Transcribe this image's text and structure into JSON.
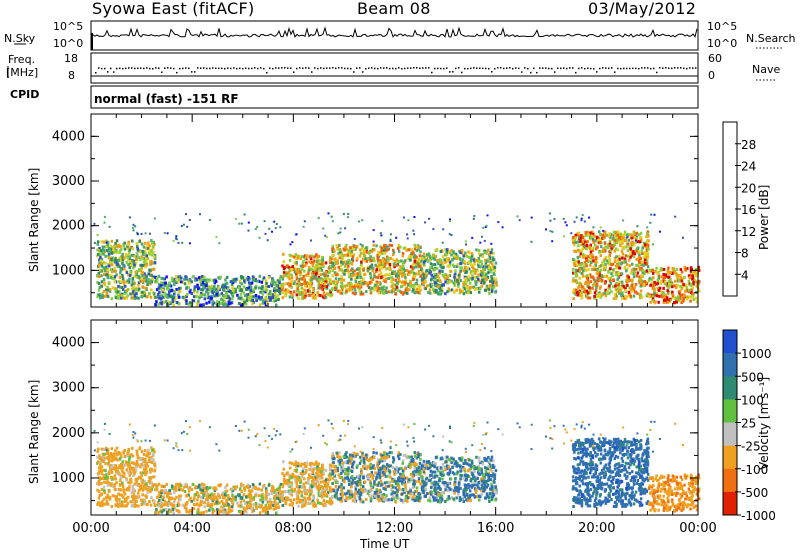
{
  "header": {
    "station": "Syowa East (fitACF)",
    "beam": "Beam 08",
    "date": "03/May/2012"
  },
  "panels": {
    "nsky_label": "N.Sky",
    "nsearch_label": "N.Search",
    "freq_label_1": "Freq.",
    "freq_label_2": "[MHz]",
    "nave_label": "Nave",
    "cpid_label": "CPID",
    "cpid_text": "normal (fast) -151 RF",
    "noise_ticks_left": [
      "10^5",
      "10^0"
    ],
    "noise_ticks_right": [
      "10^5",
      "10^0"
    ],
    "freq_ticks": [
      "18",
      "8"
    ],
    "nave_ticks": [
      "60",
      "0"
    ]
  },
  "axes": {
    "ylabel": "Slant Range [km]",
    "xlabel": "Time UT",
    "yticks": [
      "1000",
      "2000",
      "3000",
      "4000"
    ],
    "xticks": [
      "00:00",
      "04:00",
      "08:00",
      "12:00",
      "16:00",
      "20:00",
      "00:00"
    ]
  },
  "colorbars": {
    "power": {
      "label": "Power [dB]",
      "ticks": [
        "4",
        "8",
        "12",
        "16",
        "20",
        "24",
        "28"
      ],
      "colors": [
        "#1010ff",
        "#3050c0",
        "#2f8a60",
        "#4aa870",
        "#86d040",
        "#e0d020",
        "#f59a10",
        "#f06010",
        "#e00000"
      ]
    },
    "velocity": {
      "label": "Velocity [m s⁻¹]",
      "ticks": [
        "1000",
        "500",
        "100",
        "25",
        "-25",
        "-100",
        "-500",
        "-1000"
      ],
      "colors": [
        "#2050d0",
        "#3070b0",
        "#2e8a70",
        "#60c040",
        "#c0c0c0",
        "#f0a020",
        "#f07010",
        "#e02000"
      ]
    }
  },
  "chart_data": {
    "type": "heatmap",
    "title": "Syowa East (fitACF)  Beam 08  03/May/2012",
    "xlabel": "Time UT",
    "ylabel": "Slant Range [km]",
    "xlim_hours": [
      0,
      24
    ],
    "ylim_km": [
      180,
      4500
    ],
    "power_scale_db": [
      0,
      30
    ],
    "velocity_scale": [
      -1000,
      1000
    ],
    "scatter_regions": [
      {
        "t0": 0.2,
        "t1": 2.5,
        "r0": 400,
        "r1": 1700,
        "power": 14,
        "velocity": -250
      },
      {
        "t0": 2.5,
        "t1": 7.5,
        "r0": 250,
        "r1": 900,
        "power": 10,
        "velocity": -150
      },
      {
        "t0": 7.5,
        "t1": 9.5,
        "r0": 400,
        "r1": 1400,
        "power": 20,
        "velocity": -200
      },
      {
        "t0": 9.5,
        "t1": 13.0,
        "r0": 500,
        "r1": 1600,
        "power": 18,
        "velocity": 10
      },
      {
        "t0": 13.0,
        "t1": 16.0,
        "r0": 500,
        "r1": 1500,
        "power": 14,
        "velocity": 120
      },
      {
        "t0": 19.0,
        "t1": 22.0,
        "r0": 400,
        "r1": 1900,
        "power": 20,
        "velocity": 300
      },
      {
        "t0": 22.0,
        "t1": 24.0,
        "r0": 300,
        "r1": 1100,
        "power": 22,
        "velocity": -400
      }
    ]
  }
}
